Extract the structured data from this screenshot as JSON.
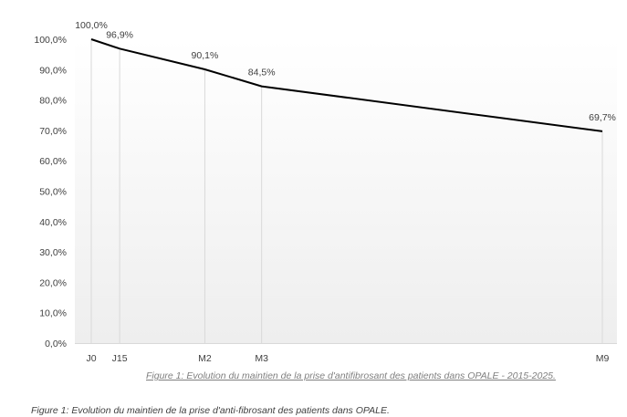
{
  "chart_data": {
    "type": "line",
    "categories": [
      "J0",
      "J15",
      "M2",
      "M3",
      "M9"
    ],
    "x": [
      0,
      0.5,
      2,
      3,
      9
    ],
    "values": [
      100.0,
      96.9,
      90.1,
      84.5,
      69.7
    ],
    "data_labels": [
      "100,0%",
      "96,9%",
      "90,1%",
      "84,5%",
      "69,7%"
    ],
    "ylim": [
      0,
      100
    ],
    "y_ticks": [
      0,
      10,
      20,
      30,
      40,
      50,
      60,
      70,
      80,
      90,
      100
    ],
    "y_tick_labels": [
      "0,0%",
      "10,0%",
      "20,0%",
      "30,0%",
      "40,0%",
      "50,0%",
      "60,0%",
      "70,0%",
      "80,0%",
      "90,0%",
      "100,0%"
    ],
    "line_color": "#000000",
    "drop_line_color": "#d9d9d9",
    "grid": false,
    "legend": "none"
  },
  "captions": {
    "chart_caption": "Figure 1: Evolution du maintien de la prise d'antifibrosant des patients dans OPALE - 2015-2025.",
    "page_caption": "Figure 1: Evolution du maintien de la prise d'anti-fibrosant des patients dans OPALE."
  }
}
